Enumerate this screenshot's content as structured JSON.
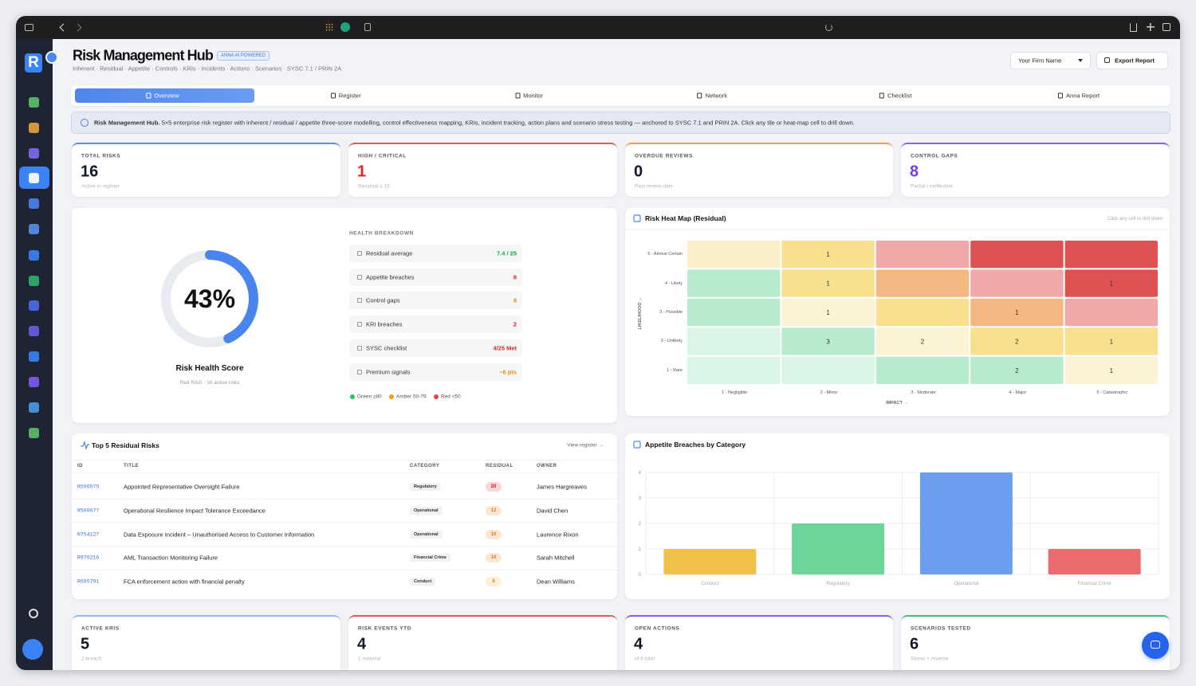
{
  "sidebar": {
    "logo": "R"
  },
  "header": {
    "title": "Risk Management Hub",
    "badge": "ANNA AI POWERED",
    "subtitle": "Inherent · Residual · Appetite · Controls · KRIs · Incidents · Actions · Scenarios · SYSC 7.1 / PRIN 2A",
    "firm_select": "Your Firm Name",
    "export_button": "Export Report"
  },
  "tabs": [
    "Overview",
    "Register",
    "Monitor",
    "Network",
    "Checklist",
    "Anna Report"
  ],
  "banner": {
    "title": "Risk Management Hub.",
    "text": "5×5 enterprise risk register with inherent / residual / appetite three-score modelling, control effectiveness mapping, KRIs, incident tracking, action plans and scenario stress testing — anchored to SYSC 7.1 and PRIN 2A. Click any tile or heat-map cell to drill down."
  },
  "kpis": [
    {
      "label": "TOTAL RISKS",
      "value": 16,
      "note": "Active in register",
      "color": "#5b8def",
      "value_color": "#111827"
    },
    {
      "label": "HIGH / CRITICAL",
      "value": 1,
      "note": "Residual ≥ 15",
      "color": "#e15b5b",
      "value_color": "#dc2626"
    },
    {
      "label": "OVERDUE REVIEWS",
      "value": 0,
      "note": "Past review date",
      "color": "#f0a04b",
      "value_color": "#111827"
    },
    {
      "label": "CONTROL GAPS",
      "value": 8,
      "note": "Partial / ineffective",
      "color": "#8b5cf6",
      "value_color": "#7c3aed"
    }
  ],
  "health": {
    "breakdown_title": "HEALTH BREAKDOWN",
    "items": [
      {
        "label": "Residual average",
        "value": "7.4 / 25",
        "color": "#16a34a"
      },
      {
        "label": "Appetite breaches",
        "value": 8,
        "color": "#dc2626"
      },
      {
        "label": "Control gaps",
        "value": 8,
        "color": "#ea8a1a"
      },
      {
        "label": "KRI breaches",
        "value": 2,
        "color": "#dc2626"
      },
      {
        "label": "SYSC checklist",
        "value": "4/25 Met",
        "color": "#dc2626"
      },
      {
        "label": "Premium signals",
        "value": "−6 pts",
        "color": "#ea8a1a"
      }
    ],
    "legend": [
      {
        "label": "Green ≥80",
        "color": "#22c55e"
      },
      {
        "label": "Amber 50-79",
        "color": "#f59e0b"
      },
      {
        "label": "Red <50",
        "color": "#ef4444"
      }
    ]
  },
  "chart_data": [
    {
      "type": "gauge",
      "title": "Risk Health Score",
      "subtitle": "Red RAG · 16 active risks",
      "values": [
        43
      ],
      "value_labels": [
        "43%"
      ],
      "ylim": [
        0,
        100
      ],
      "color": "#4a84ee"
    },
    {
      "type": "heatmap",
      "title": "Risk Heat Map (Residual)",
      "note": "Click any cell to drill down",
      "x_label": "IMPACT →",
      "y_label": "LIKELIHOOD →",
      "x": [
        "1 - Negligible",
        "2 - Minor",
        "3 - Moderate",
        "4 - Major",
        "5 - Catastrophic"
      ],
      "y": [
        "5 - Almost Certain",
        "4 - Likely",
        "3 - Possible",
        "2 - Unlikely",
        "1 - Rare"
      ],
      "values": [
        [
          null,
          1,
          null,
          null,
          null
        ],
        [
          null,
          1,
          null,
          null,
          1
        ],
        [
          null,
          1,
          null,
          1,
          null
        ],
        [
          null,
          3,
          2,
          2,
          1
        ],
        [
          null,
          null,
          null,
          2,
          1
        ]
      ],
      "colors": [
        [
          "#fbefc9",
          "#f8e08e",
          "#f0a8a8",
          "#e05252",
          "#e05252"
        ],
        [
          "#b6ebce",
          "#f8e08e",
          "#f3b882",
          "#f0a8a8",
          "#e05252"
        ],
        [
          "#b6ebce",
          "#fcf3d4",
          "#f8e08e",
          "#f3b882",
          "#f0a8a8"
        ],
        [
          "#d9f5e5",
          "#b6ebce",
          "#fcf3d4",
          "#f8e08e",
          "#f8e08e"
        ],
        [
          "#d9f5e5",
          "#d9f5e5",
          "#b6ebce",
          "#b6ebce",
          "#fcf3d4"
        ]
      ]
    },
    {
      "type": "bar",
      "title": "Appetite Breaches by Category",
      "categories": [
        "Conduct",
        "Regulatory",
        "Operational",
        "Financial Crime"
      ],
      "values": [
        1,
        2,
        4,
        1
      ],
      "colors": [
        "#f0c24b",
        "#6dd49a",
        "#6c9ef0",
        "#e96b6b"
      ],
      "ylim": [
        0,
        4
      ],
      "yticks": [
        0,
        1,
        2,
        3,
        4
      ],
      "grid": true
    }
  ],
  "top_risks": {
    "title": "Top 5 Residual Risks",
    "link": "View register →",
    "columns": [
      "ID",
      "TITLE",
      "CATEGORY",
      "RESIDUAL",
      "OWNER"
    ],
    "rows": [
      [
        "R596675",
        "Appointed Representative Oversight Failure",
        "Regulatory",
        20,
        "James Hargreaves"
      ],
      [
        "R560677",
        "Operational Resilience Impact Tolerance Exceedance",
        "Operational",
        12,
        "David Chen"
      ],
      [
        "R754127",
        "Data Exposure Incident – Unauthorised Access to Customer Information",
        "Operational",
        10,
        "Laurence Rixon"
      ],
      [
        "R970216",
        "AML Transaction Monitoring Failure",
        "Financial Crime",
        10,
        "Sarah Mitchell"
      ],
      [
        "R685791",
        "FCA enforcement action with financial penalty",
        "Conduct",
        8,
        "Dean Williams"
      ]
    ]
  },
  "kpis_bottom": [
    {
      "label": "ACTIVE KRIS",
      "value": 5,
      "note": "2 breach",
      "color": "#9ab7f0",
      "value_color": "#111827"
    },
    {
      "label": "RISK EVENTS YTD",
      "value": 4,
      "note": "1 material",
      "color": "#e15b5b",
      "value_color": "#111827"
    },
    {
      "label": "OPEN ACTIONS",
      "value": 4,
      "note": "of 6 total",
      "color": "#8b5cf6",
      "value_color": "#111827"
    },
    {
      "label": "SCENARIOS TESTED",
      "value": 6,
      "note": "Stress + reverse",
      "color": "#3fbf7f",
      "value_color": "#111827"
    }
  ]
}
